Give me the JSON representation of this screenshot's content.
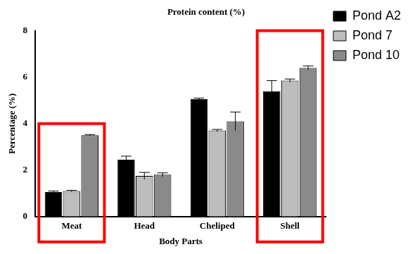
{
  "chart_data": {
    "type": "bar",
    "title": "Protein content (%)",
    "x_label": "Body Parts",
    "y_label": "Percentage (%)",
    "categories": [
      "Meat",
      "Head",
      "Cheliped",
      "Shell"
    ],
    "series": [
      {
        "name": "Pond A2",
        "color": "#000000",
        "values": [
          1.05,
          2.45,
          5.05,
          5.4
        ],
        "errors": [
          0.05,
          0.15,
          0.05,
          0.45
        ]
      },
      {
        "name": "Pond 7",
        "color": "#bdbdbd",
        "values": [
          1.1,
          1.75,
          3.7,
          5.85
        ],
        "errors": [
          0.03,
          0.15,
          0.05,
          0.07
        ]
      },
      {
        "name": "Pond 10",
        "color": "#8a8a8a",
        "values": [
          3.5,
          1.8,
          4.1,
          6.4
        ],
        "errors": [
          0.03,
          0.08,
          0.4,
          0.08
        ]
      }
    ],
    "ylim": [
      0,
      8
    ],
    "yticks": [
      0,
      2,
      4,
      6,
      8
    ],
    "grid": false,
    "legend": "right"
  }
}
